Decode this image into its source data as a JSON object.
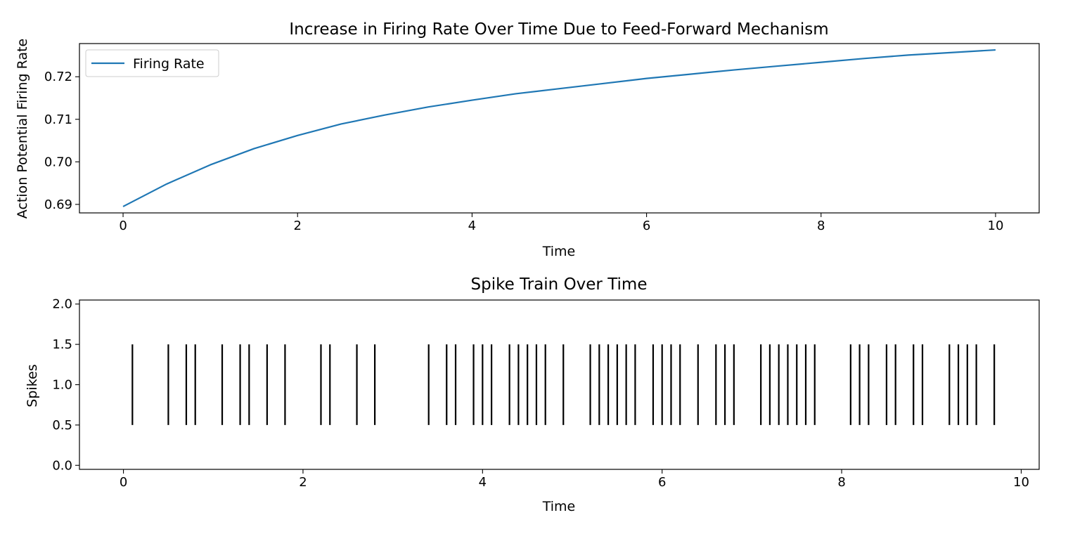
{
  "chart_data": [
    {
      "type": "line",
      "title": "Increase in Firing Rate Over Time Due to Feed-Forward Mechanism",
      "xlabel": "Time",
      "ylabel": "Action Potential Firing Rate",
      "xlim": [
        -0.5,
        10.5
      ],
      "ylim": [
        0.688,
        0.7278
      ],
      "xticks": [
        0,
        2,
        4,
        6,
        8,
        10
      ],
      "xtick_labels": [
        "0",
        "2",
        "4",
        "6",
        "8",
        "10"
      ],
      "yticks": [
        0.69,
        0.7,
        0.71,
        0.72
      ],
      "ytick_labels": [
        "0.69",
        "0.70",
        "0.71",
        "0.72"
      ],
      "grid": false,
      "legend": "top-left",
      "series": [
        {
          "name": "Firing Rate",
          "color": "#1f77b4",
          "x": [
            0,
            0.5,
            1,
            1.5,
            2,
            2.5,
            3,
            3.5,
            4,
            4.5,
            5,
            5.5,
            6,
            6.5,
            7,
            7.5,
            8,
            8.5,
            9,
            9.5,
            10
          ],
          "y": [
            0.6895,
            0.6948,
            0.6993,
            0.7031,
            0.7062,
            0.7089,
            0.711,
            0.7129,
            0.7145,
            0.716,
            0.7172,
            0.7184,
            0.7196,
            0.7206,
            0.7216,
            0.7225,
            0.7234,
            0.7243,
            0.7251,
            0.7257,
            0.7263
          ]
        }
      ]
    },
    {
      "type": "eventplot",
      "title": "Spike Train Over Time",
      "xlabel": "Time",
      "ylabel": "Spikes",
      "xlim": [
        -0.49,
        10.2
      ],
      "ylim": [
        -0.05,
        2.05
      ],
      "xticks": [
        0,
        2,
        4,
        6,
        8,
        10
      ],
      "xtick_labels": [
        "0",
        "2",
        "4",
        "6",
        "8",
        "10"
      ],
      "yticks": [
        0.0,
        0.5,
        1.0,
        1.5,
        2.0
      ],
      "ytick_labels": [
        "0.0",
        "0.5",
        "1.0",
        "1.5",
        "2.0"
      ],
      "grid": false,
      "line_range": [
        0.5,
        1.5
      ],
      "color": "#000000",
      "spikes": [
        0.1,
        0.5,
        0.7,
        0.8,
        1.1,
        1.3,
        1.4,
        1.6,
        1.8,
        2.2,
        2.3,
        2.6,
        2.8,
        3.4,
        3.6,
        3.7,
        3.9,
        4.0,
        4.1,
        4.3,
        4.4,
        4.5,
        4.6,
        4.7,
        4.9,
        5.2,
        5.3,
        5.4,
        5.5,
        5.6,
        5.7,
        5.9,
        6.0,
        6.1,
        6.2,
        6.4,
        6.6,
        6.7,
        6.8,
        7.1,
        7.2,
        7.3,
        7.4,
        7.5,
        7.6,
        7.7,
        8.1,
        8.2,
        8.3,
        8.5,
        8.6,
        8.8,
        8.9,
        9.2,
        9.3,
        9.4,
        9.5,
        9.7
      ]
    }
  ]
}
